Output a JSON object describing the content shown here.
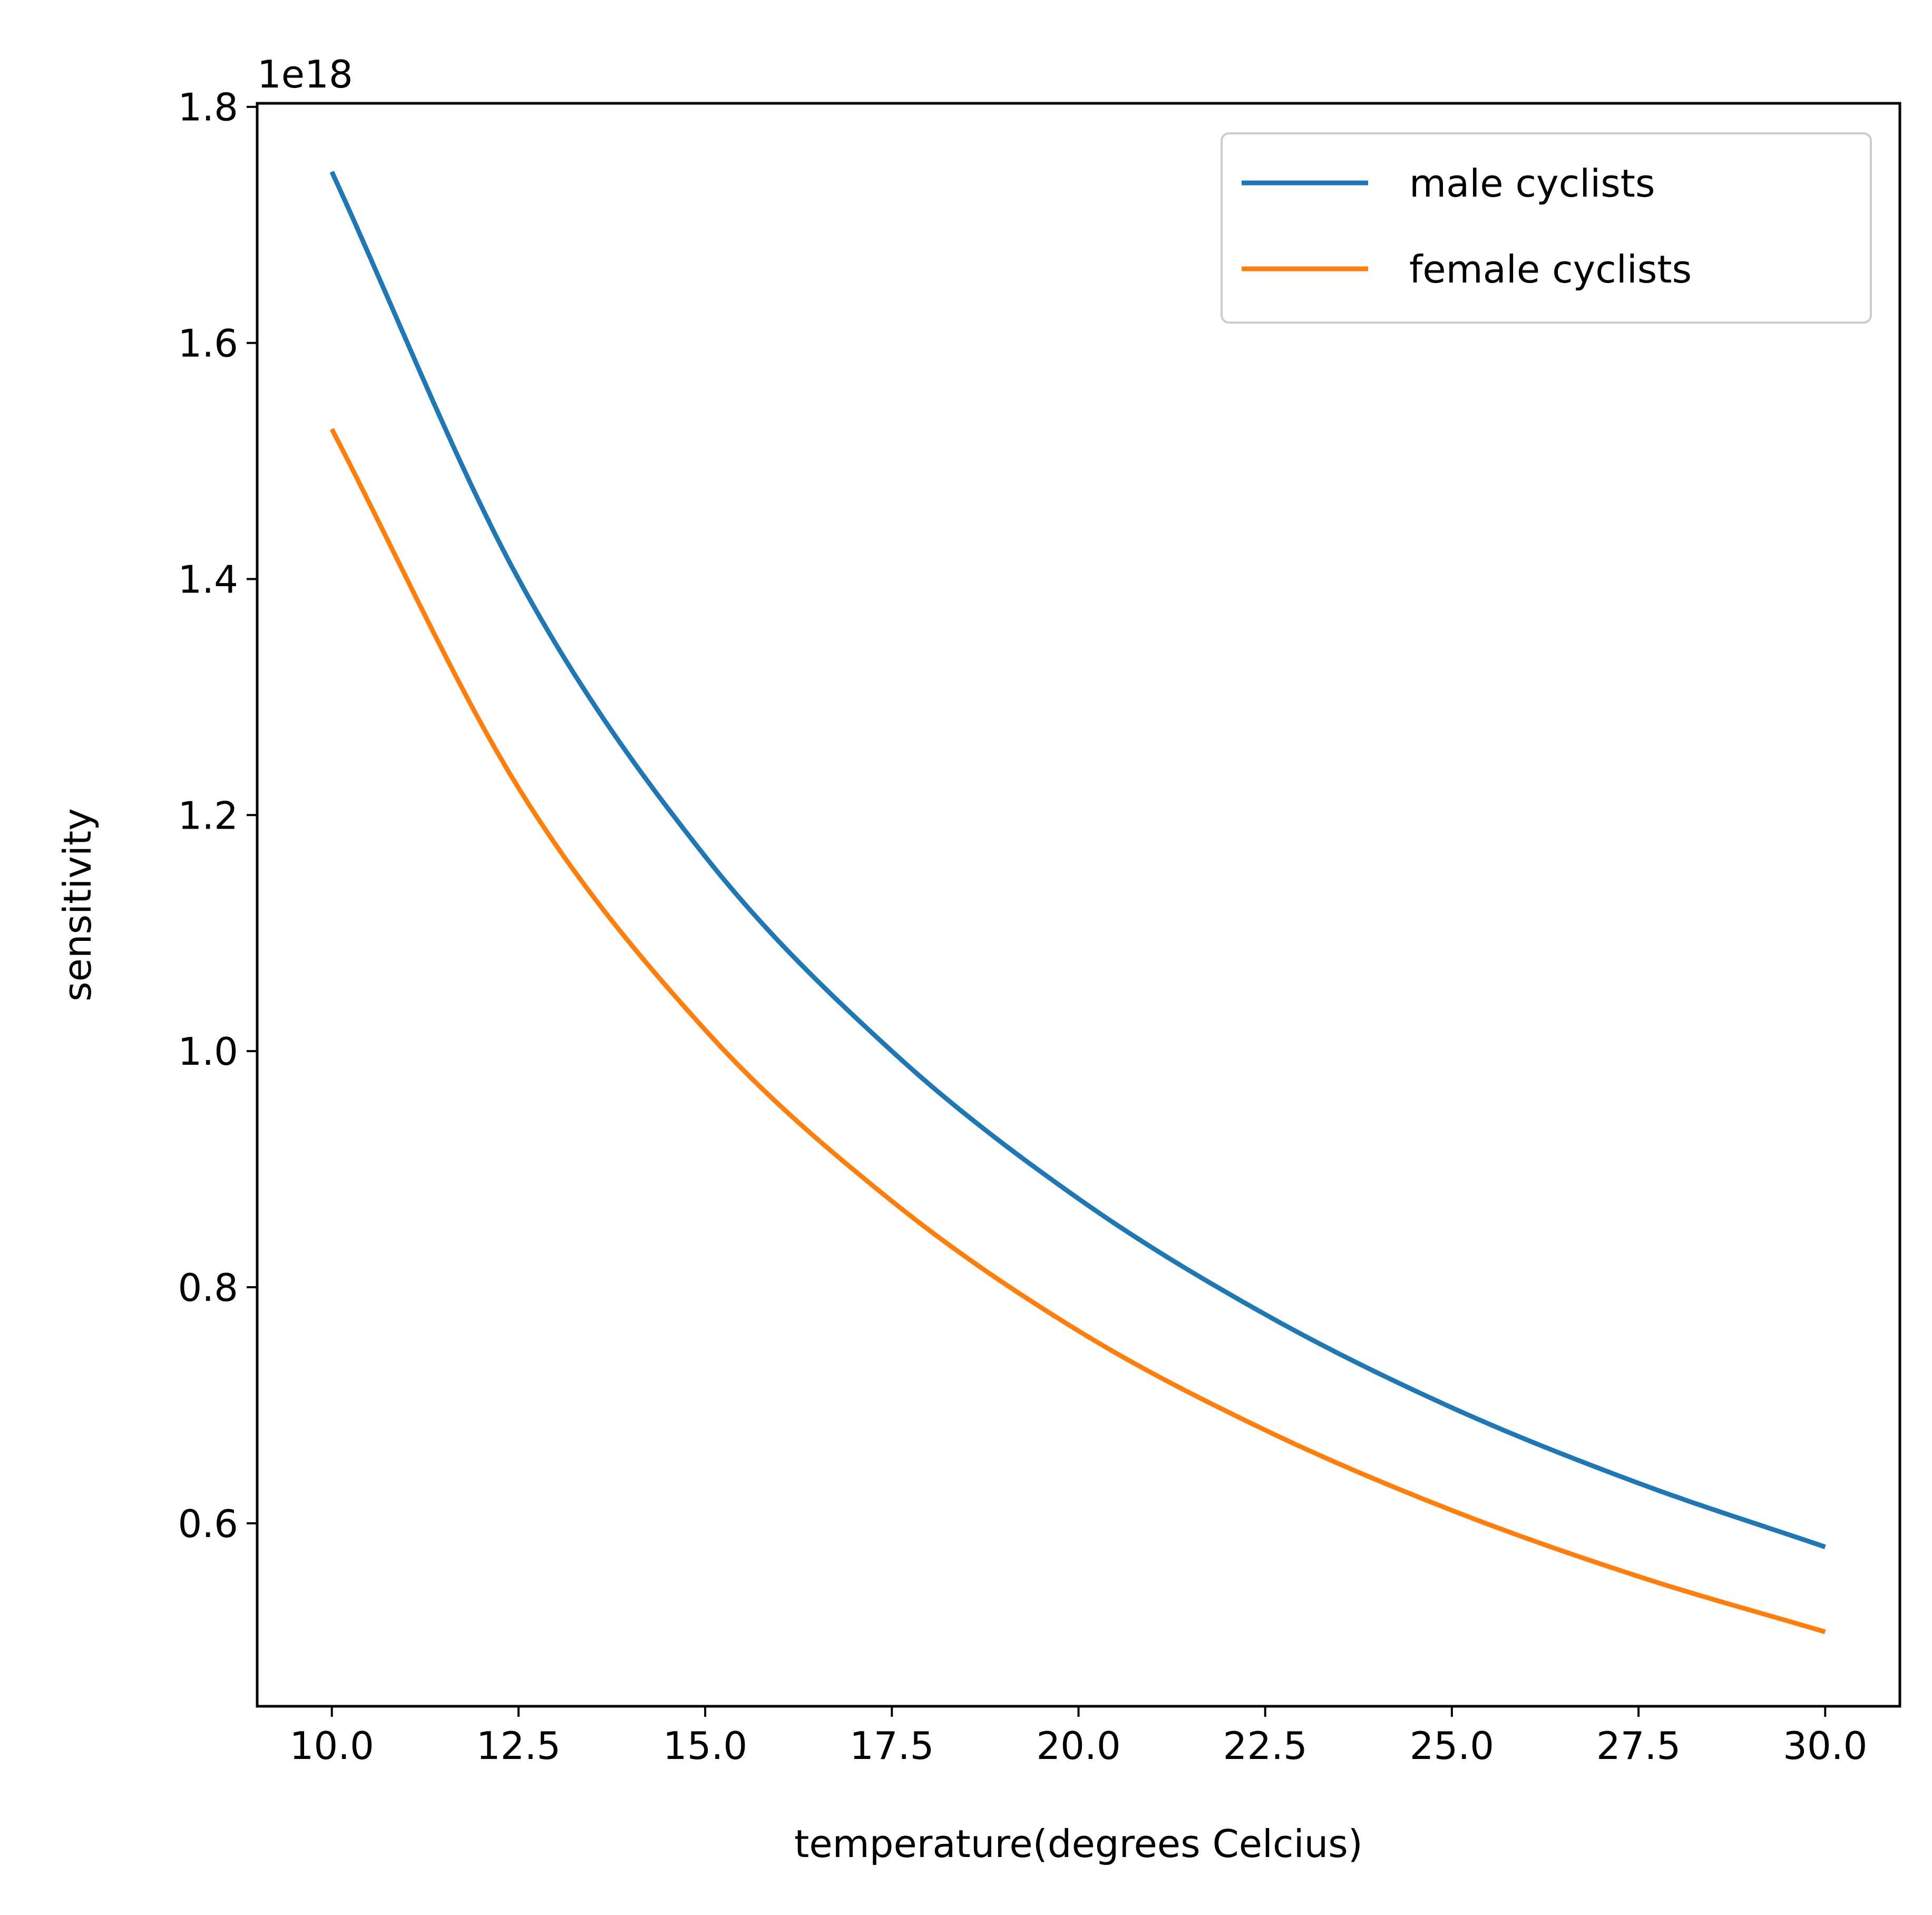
{
  "chart_data": {
    "type": "line",
    "xlabel": "temperature(degrees Celcius)",
    "ylabel": "sensitivity",
    "y_offset_label": "1e18",
    "xlim": [
      9.0,
      31.0
    ],
    "ylim": [
      0.445,
      1.803
    ],
    "x_ticks": [
      10.0,
      12.5,
      15.0,
      17.5,
      20.0,
      22.5,
      25.0,
      27.5,
      30.0
    ],
    "x_tick_labels": [
      "10.0",
      "12.5",
      "15.0",
      "17.5",
      "20.0",
      "22.5",
      "25.0",
      "27.5",
      "30.0"
    ],
    "y_ticks": [
      0.6,
      0.8,
      1.0,
      1.2,
      1.4,
      1.6,
      1.8
    ],
    "y_tick_labels": [
      "0.6",
      "0.8",
      "1.0",
      "1.2",
      "1.4",
      "1.6",
      "1.8"
    ],
    "grid": false,
    "legend_position": "top-right",
    "x": [
      10.0,
      12.5,
      15.0,
      17.5,
      20.0,
      22.5,
      25.0,
      27.5,
      30.0
    ],
    "series": [
      {
        "name": "male cyclists",
        "color": "#1f77b4",
        "values": [
          1.745,
          1.4,
          1.165,
          1.0,
          0.875,
          0.777,
          0.698,
          0.634,
          0.58
        ]
      },
      {
        "name": "female cyclists",
        "color": "#ff7f0e",
        "values": [
          1.527,
          1.223,
          1.018,
          0.873,
          0.763,
          0.679,
          0.611,
          0.555,
          0.508
        ]
      }
    ]
  }
}
